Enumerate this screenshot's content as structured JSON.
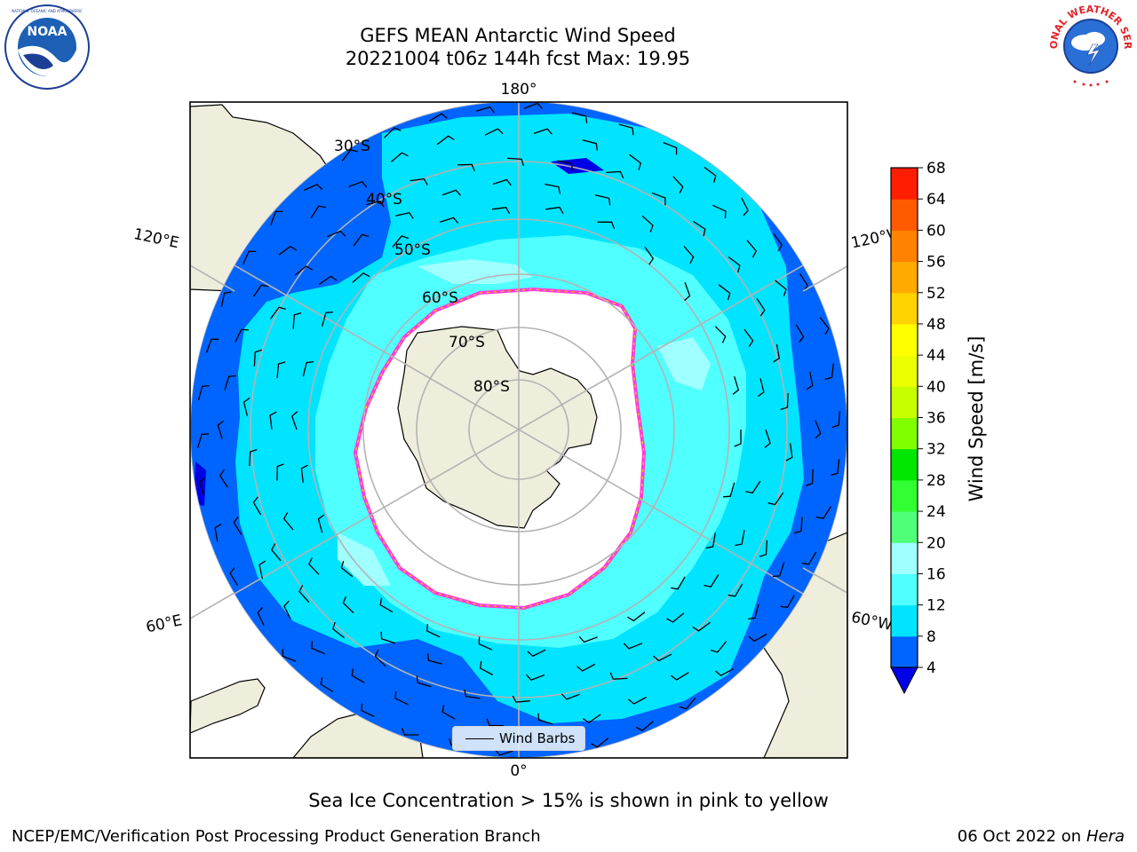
{
  "title_line1": "GEFS MEAN Antarctic Wind Speed",
  "title_line2": "20221004 t06z 144h fcst   Max: 19.95",
  "logos": {
    "left": "NOAA",
    "right": "NATIONAL WEATHER SERVICE"
  },
  "map": {
    "projection": "south-polar-stereographic",
    "longitude_labels": {
      "top": "180°",
      "bottom": "0°",
      "upper_left": "120°E",
      "upper_right": "120°W",
      "lower_left": "60°E",
      "lower_right": "60°W"
    },
    "latitude_labels": [
      "30°S",
      "40°S",
      "50°S",
      "60°S",
      "70°S",
      "80°S"
    ],
    "legend_label": "Wind Barbs"
  },
  "colorbar": {
    "title": "Wind Speed [m/s]",
    "ticks": [
      "4",
      "8",
      "12",
      "16",
      "20",
      "24",
      "28",
      "32",
      "36",
      "40",
      "44",
      "48",
      "52",
      "56",
      "60",
      "64",
      "68"
    ],
    "colors": [
      "#0064ff",
      "#00e4ff",
      "#50ffff",
      "#a0ffff",
      "#50ff78",
      "#32ff32",
      "#00e600",
      "#80ff00",
      "#c8ff00",
      "#ebff00",
      "#ffff00",
      "#ffd200",
      "#ffaa00",
      "#ff8200",
      "#ff5a00",
      "#ff1e00"
    ],
    "under_color": "#0000e6"
  },
  "caption": "Sea Ice Concentration > 15% is shown in pink to yellow",
  "footer_left": "NCEP/EMC/Verification Post Processing Product Generation Branch",
  "footer_date": "06 Oct 2022 on",
  "footer_host": "Hera"
}
